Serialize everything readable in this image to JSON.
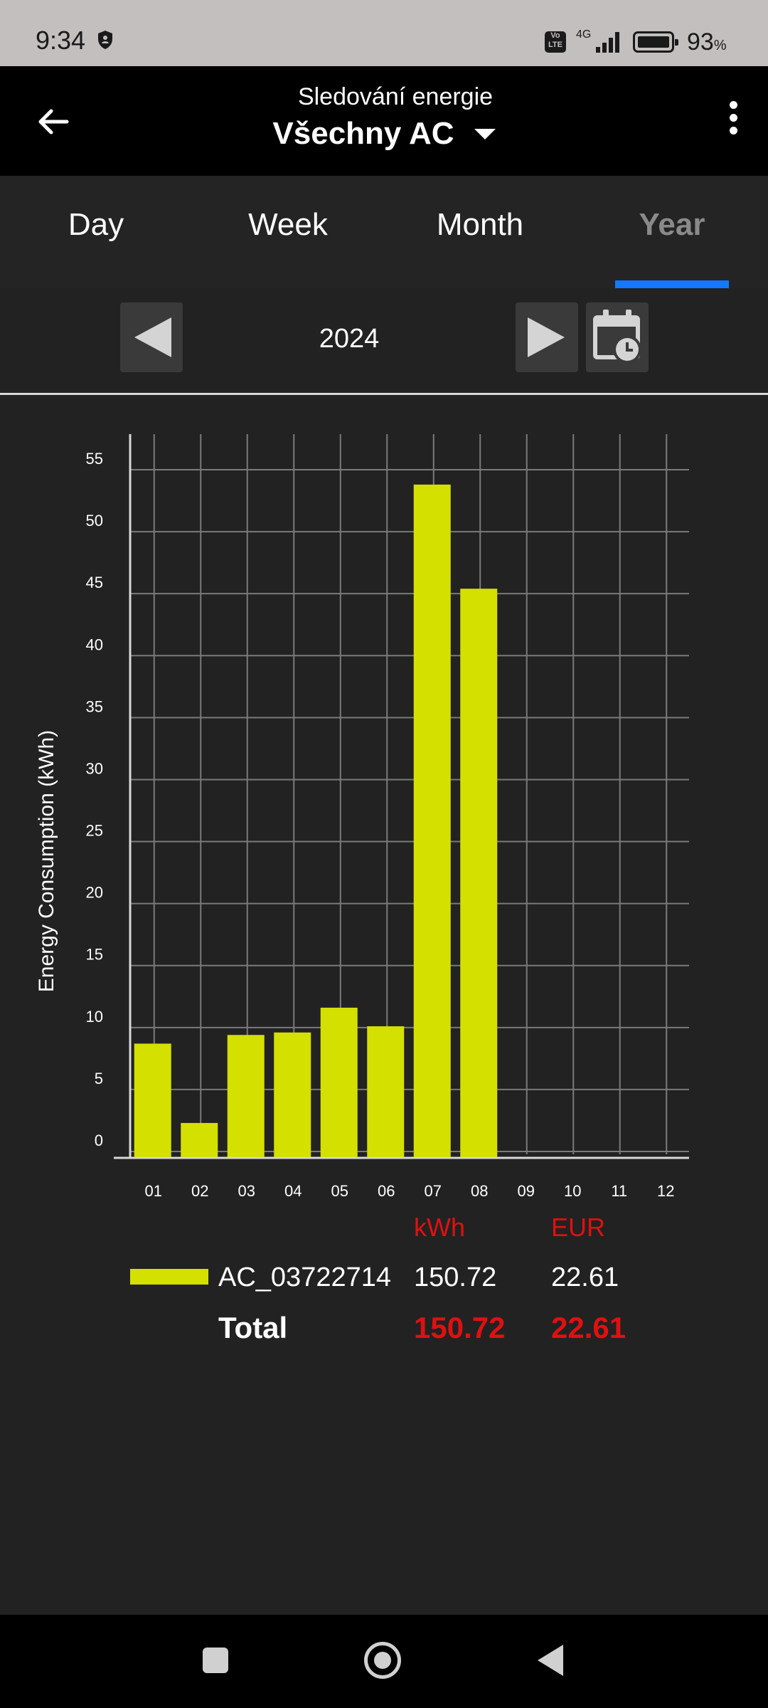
{
  "status_bar": {
    "time": "9:34",
    "volte": "Vo LTE",
    "network": "4G",
    "battery_percent": "93",
    "battery_unit": "%",
    "icons": [
      "shield-icon",
      "signal-icon",
      "battery-icon"
    ]
  },
  "app_bar": {
    "subtitle": "Sledování energie",
    "title": "Všechny AC",
    "icons": [
      "back-arrow-icon",
      "dropdown-caret-icon",
      "more-vertical-icon"
    ]
  },
  "tabs": [
    {
      "label": "Day"
    },
    {
      "label": "Week"
    },
    {
      "label": "Month"
    },
    {
      "label": "Year"
    }
  ],
  "selected_tab": "Year",
  "period": {
    "label": "2024",
    "icons": [
      "prev-icon",
      "next-icon",
      "calendar-clock-icon"
    ]
  },
  "colors": {
    "bar": "#d4e000",
    "accent_tab": "#1479ff",
    "totals": "#e01010",
    "background": "#222222"
  },
  "chart_data": {
    "type": "bar",
    "categories": [
      "01",
      "02",
      "03",
      "04",
      "05",
      "06",
      "07",
      "08",
      "09",
      "10",
      "11",
      "12"
    ],
    "series": [
      {
        "name": "AC_03722714",
        "values": [
          8.7,
          2.3,
          9.4,
          9.6,
          11.6,
          10.1,
          53.8,
          45.4,
          0,
          0,
          0,
          0
        ]
      }
    ],
    "ylabel": "Energy Consumption (kWh)",
    "xlabel": "",
    "ylim": [
      0,
      55
    ],
    "yticks": [
      0,
      5,
      10,
      15,
      20,
      25,
      30,
      35,
      40,
      45,
      50,
      55
    ],
    "grid": true
  },
  "summary": {
    "header_kwh": "kWh",
    "header_eur": "EUR",
    "rows": [
      {
        "name": "AC_03722714",
        "kwh": "150.72",
        "eur": "22.61"
      }
    ],
    "total_label": "Total",
    "total_kwh": "150.72",
    "total_eur": "22.61"
  },
  "nav_bar": {
    "icons": [
      "recents-icon",
      "home-icon",
      "back-icon"
    ]
  }
}
